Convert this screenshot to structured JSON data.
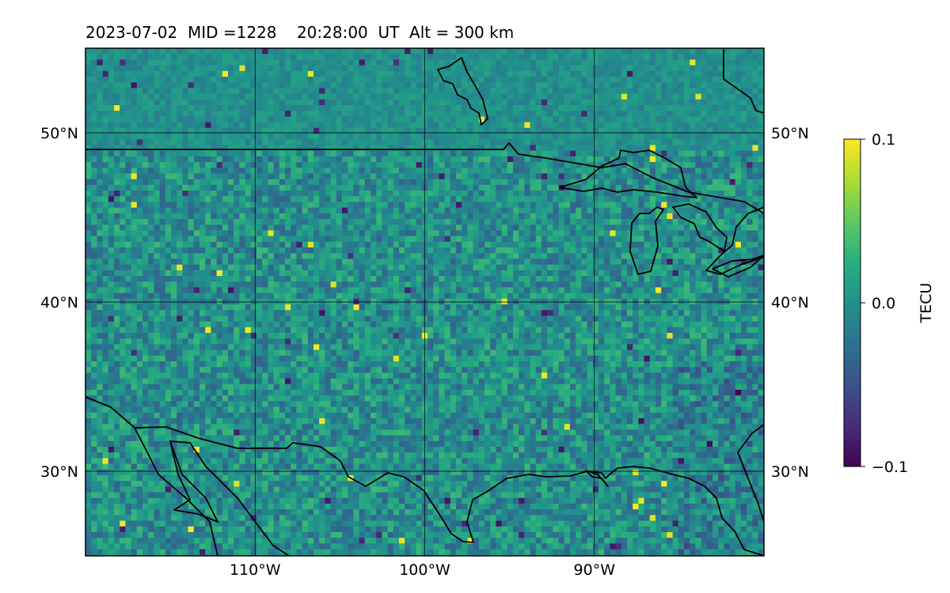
{
  "title": "2023-07-02  MID =1228    20:28:00  UT  Alt = 300 km",
  "map": {
    "lon_range": [
      -120,
      -80
    ],
    "lat_range": [
      25,
      55
    ],
    "lat_ticks": [
      {
        "value": 50,
        "label": "50°N"
      },
      {
        "value": 40,
        "label": "40°N"
      },
      {
        "value": 30,
        "label": "30°N"
      }
    ],
    "lon_ticks": [
      {
        "value": -110,
        "label": "110°W"
      },
      {
        "value": -100,
        "label": "100°W"
      },
      {
        "value": -90,
        "label": "90°W"
      }
    ],
    "colormap": "viridis",
    "coastlines": "black",
    "gridlines": true
  },
  "colorbar": {
    "label": "TECU",
    "ticks": [
      {
        "value": 0.1,
        "label": "0.1"
      },
      {
        "value": 0.0,
        "label": "0.0"
      },
      {
        "value": -0.1,
        "label": "−0.1"
      }
    ],
    "range": [
      -0.1,
      0.1
    ]
  }
}
